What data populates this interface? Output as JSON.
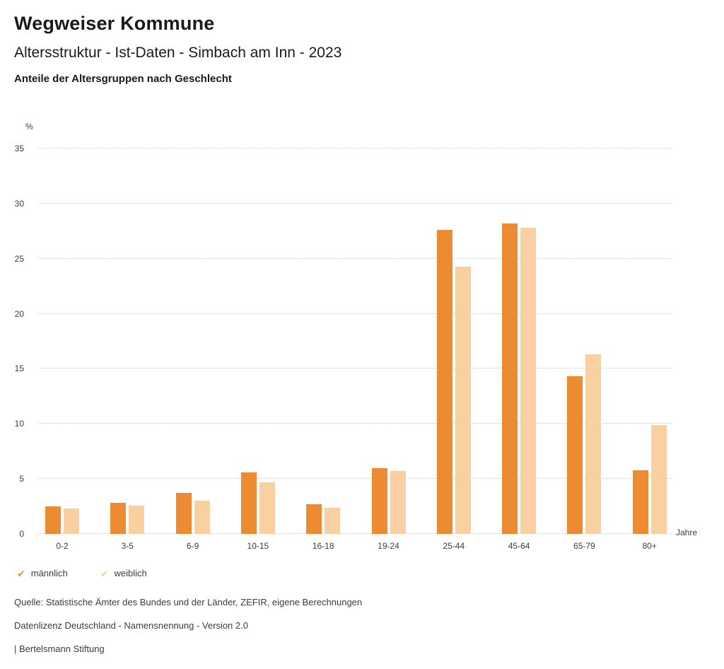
{
  "header": {
    "title": "Wegweiser Kommune",
    "subtitle": "Altersstruktur - Ist-Daten - Simbach am Inn - 2023",
    "description": "Anteile der Altersgruppen nach Geschlecht"
  },
  "chart_data": {
    "type": "bar",
    "title": "Anteile der Altersgruppen nach Geschlecht",
    "categories": [
      "0-2",
      "3-5",
      "6-9",
      "10-15",
      "16-18",
      "19-24",
      "25-44",
      "45-64",
      "65-79",
      "80+"
    ],
    "series": [
      {
        "name": "männlich",
        "color": "#ED8B33",
        "values": [
          2.5,
          2.8,
          3.7,
          5.6,
          2.7,
          6.0,
          27.6,
          28.2,
          14.3,
          5.8
        ]
      },
      {
        "name": "weiblich",
        "color": "#F8D0A1",
        "values": [
          2.3,
          2.6,
          3.0,
          4.7,
          2.4,
          5.7,
          24.3,
          27.8,
          16.3,
          9.9
        ]
      }
    ],
    "xlabel": "Jahre",
    "ylabel": "%",
    "ylim": [
      0,
      35
    ],
    "yticks": [
      0,
      5,
      10,
      15,
      20,
      25,
      30,
      35
    ],
    "grid": true,
    "gridline_color": "#C9C9C9",
    "legend_position": "bottom"
  },
  "legend": {
    "check_icon": "✔",
    "items": [
      {
        "label": "männlich",
        "color": "#ED8B33"
      },
      {
        "label": "weiblich",
        "color": "#F8D0A1"
      }
    ]
  },
  "footer": {
    "source": "Quelle: Statistische Ämter des Bundes und der Länder, ZEFIR, eigene Berechnungen",
    "license": "Datenlizenz Deutschland - Namensnennung - Version 2.0",
    "attribution": "| Bertelsmann Stiftung"
  }
}
